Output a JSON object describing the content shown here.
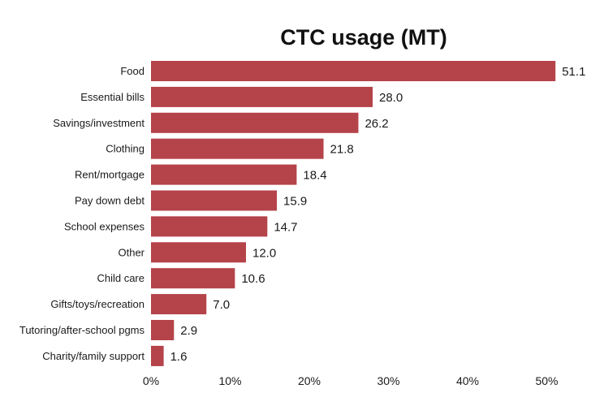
{
  "chart_data": {
    "type": "bar",
    "orientation": "horizontal",
    "title": "CTC usage (MT)",
    "xlabel": "",
    "ylabel": "",
    "categories": [
      "Food",
      "Essential bills",
      "Savings/investment",
      "Clothing",
      "Rent/mortgage",
      "Pay down debt",
      "School expenses",
      "Other",
      "Child care",
      "Gifts/toys/recreation",
      "Tutoring/after-school pgms",
      "Charity/family support"
    ],
    "values": [
      51.1,
      28.0,
      26.2,
      21.8,
      18.4,
      15.9,
      14.7,
      12.0,
      10.6,
      7.0,
      2.9,
      1.6
    ],
    "value_labels": [
      "51.1",
      "28.0",
      "26.2",
      "21.8",
      "18.4",
      "15.9",
      "14.7",
      "12.0",
      "10.6",
      "7.0",
      "2.9",
      "1.6"
    ],
    "xlim": [
      0,
      50
    ],
    "xticks": [
      0,
      10,
      20,
      30,
      40,
      50
    ],
    "xtick_labels": [
      "0%",
      "10%",
      "20%",
      "30%",
      "40%",
      "50%"
    ],
    "grid": false,
    "legend": "none",
    "bar_color": "#b5434a"
  }
}
